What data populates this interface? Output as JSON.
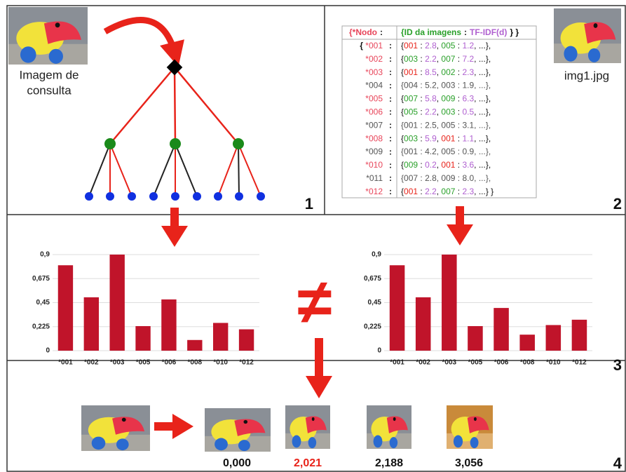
{
  "panels": {
    "query_caption_line1": "Imagem de",
    "query_caption_line2": "consulta",
    "filename": "img1.jpg",
    "numbers": [
      "1",
      "2",
      "3",
      "4"
    ],
    "not_equal": "≠"
  },
  "table": {
    "header": [
      "{*Nodo",
      ":",
      "{ID da imagens",
      ":",
      "TF-IDF(d)",
      "} }"
    ],
    "separator": ":",
    "rows": [
      {
        "node": "{ *001",
        "entry": "{001 : 2.8, 005 : 1.2, ...},",
        "color": "#e8455a"
      },
      {
        "node": "*002",
        "entry": "{003 : 2.2, 007 : 7.2, ...},",
        "color": "#e8455a"
      },
      {
        "node": "*003",
        "entry": "{001 : 8.5, 002 : 2.3, ...},",
        "color": "#e8455a"
      },
      {
        "node": "*004",
        "entry": "{004 : 5.2, 003 : 1.9, ...},",
        "color": "#555555"
      },
      {
        "node": "*005",
        "entry": "{007 : 5.8, 009 : 6.3, ...},",
        "color": "#e8455a"
      },
      {
        "node": "*006",
        "entry": "{005 : 2.2, 003 : 0.5, ...},",
        "color": "#e8455a"
      },
      {
        "node": "*007",
        "entry": "{001 : 2.5, 005 : 3.1, ...},",
        "color": "#555555"
      },
      {
        "node": "*008",
        "entry": "{003 : 5.9, 001 : 1.1, ...},",
        "color": "#e8455a"
      },
      {
        "node": "*009",
        "entry": "{001 : 4.2, 005 : 0.9, ...},",
        "color": "#555555"
      },
      {
        "node": "*010",
        "entry": "{009 : 0.2, 001 : 3.6, ...},",
        "color": "#e8455a"
      },
      {
        "node": "*011",
        "entry": "{007 : 2.8, 009 : 8.0, ...},",
        "color": "#555555"
      },
      {
        "node": "*012",
        "entry": "{001 : 2.2, 007 : 2.3, ...} }",
        "color": "#e8455a"
      }
    ]
  },
  "charts": [
    {
      "type": "bar",
      "color": "#c0142a",
      "categories": [
        "*001",
        "*002",
        "*003",
        "*005",
        "*006",
        "*008",
        "*010",
        "*012"
      ],
      "values": [
        0.8,
        0.5,
        0.9,
        0.23,
        0.48,
        0.1,
        0.26,
        0.2
      ],
      "ylim": [
        0,
        0.9
      ],
      "yticks": [
        0,
        {
          "value": 0.225,
          "label": "0,225"
        },
        {
          "value": 0.45,
          "label": "0,45"
        },
        {
          "value": 0.675,
          "label": "0,675"
        },
        {
          "value": 0.9,
          "label": "0,9"
        }
      ],
      "grid": true
    },
    {
      "type": "bar",
      "color": "#c0142a",
      "categories": [
        "*001",
        "*002",
        "*003",
        "*005",
        "*006",
        "*008",
        "*010",
        "*012"
      ],
      "values": [
        0.8,
        0.5,
        0.9,
        0.23,
        0.4,
        0.15,
        0.24,
        0.29
      ],
      "ylim": [
        0,
        0.9
      ],
      "yticks": [
        0,
        {
          "value": 0.225,
          "label": "0,225"
        },
        {
          "value": 0.45,
          "label": "0,45"
        },
        {
          "value": 0.675,
          "label": "0,675"
        },
        {
          "value": 0.9,
          "label": "0,9"
        }
      ],
      "grid": true
    }
  ],
  "results": {
    "distances": [
      {
        "label": "0,000",
        "color": "#111111"
      },
      {
        "label": "2,021",
        "color": "#e8231a"
      },
      {
        "label": "2,188",
        "color": "#111111"
      },
      {
        "label": "3,056",
        "color": "#111111"
      }
    ]
  }
}
